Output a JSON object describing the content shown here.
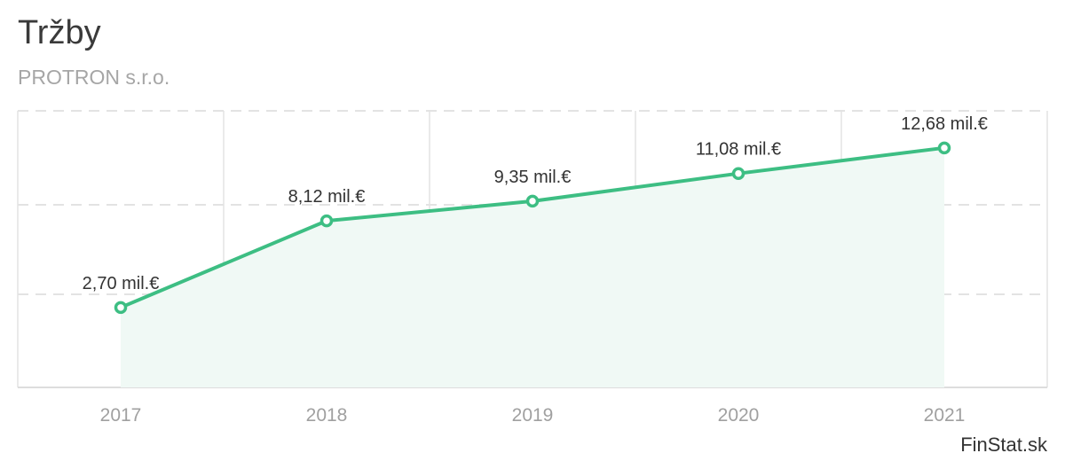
{
  "title": "Tržby",
  "subtitle": "PROTRON s.r.o.",
  "brand": "FinStat.sk",
  "colors": {
    "line": "#3dbe83",
    "area": "#f0f9f5",
    "grid": "#e3e3e3",
    "axis": "#dddddd"
  },
  "chart_data": {
    "type": "area",
    "title": "Tržby",
    "subtitle": "PROTRON s.r.o.",
    "categories": [
      "2017",
      "2018",
      "2019",
      "2020",
      "2021"
    ],
    "series": [
      {
        "values": [
          2.7,
          8.12,
          9.35,
          11.08,
          12.68
        ],
        "labels": [
          "2,70 mil.€",
          "8,12 mil.€",
          "9,35 mil.€",
          "11,08 mil.€",
          "12,68 mil.€"
        ]
      }
    ],
    "ylim": [
      -2.3,
      15
    ],
    "grid": true,
    "ylabel": "",
    "xlabel": ""
  }
}
